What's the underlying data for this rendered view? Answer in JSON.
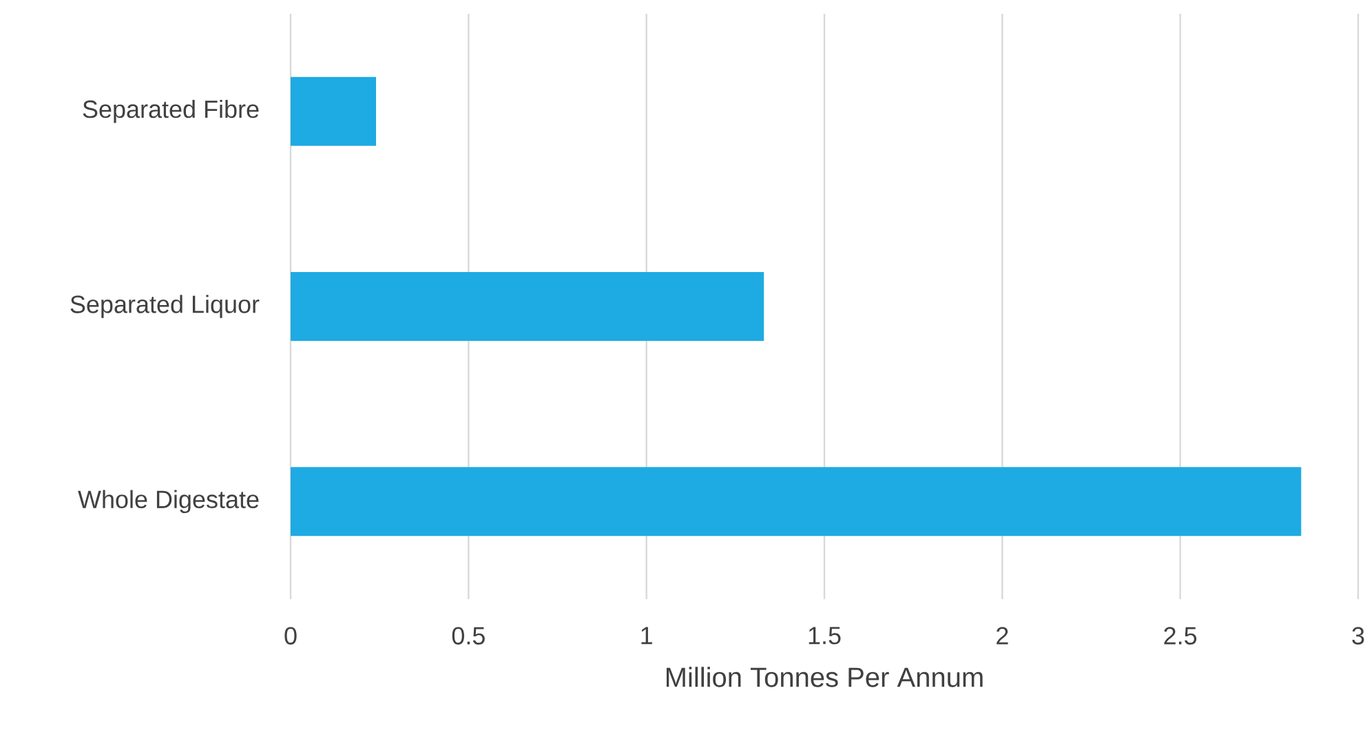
{
  "chart_data": {
    "type": "bar",
    "orientation": "horizontal",
    "xlabel": "Million Tonnes Per Annum",
    "categories": [
      "Separated Fibre",
      "Separated Liquor",
      "Whole Digestate"
    ],
    "values": [
      0.24,
      1.33,
      2.84
    ],
    "color": "#1eaae2",
    "xlim": [
      0,
      3
    ],
    "xticks": [
      0,
      0.5,
      1,
      1.5,
      2,
      2.5,
      3
    ],
    "grid": "x"
  }
}
